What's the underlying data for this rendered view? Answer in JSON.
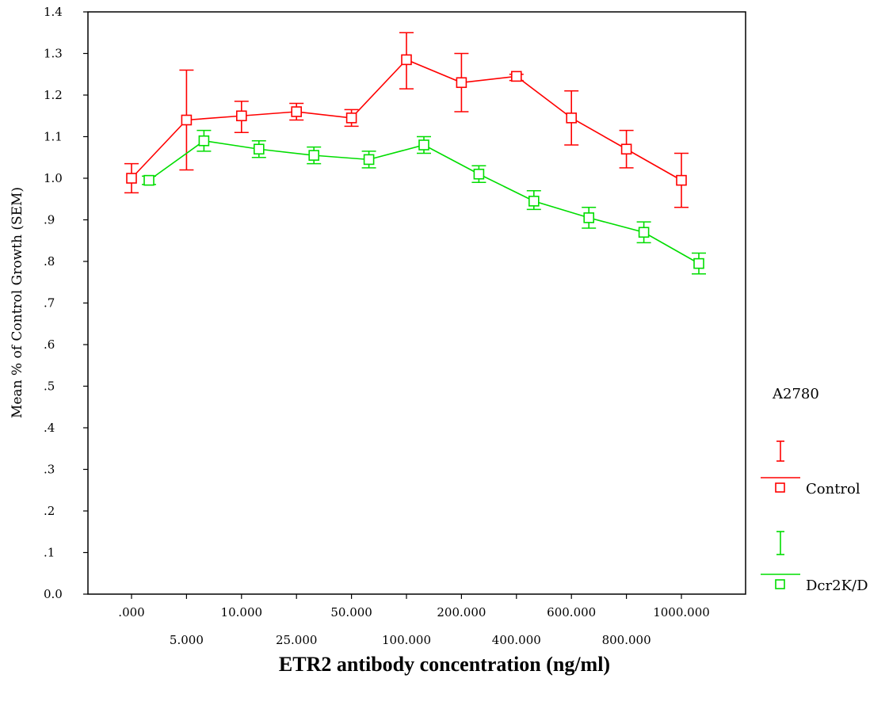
{
  "chart_data": {
    "type": "line",
    "title": "",
    "xlabel": "ETR2 antibody concentration (ng/ml)",
    "ylabel": "Mean % of Control Growth (SEM)",
    "ylim": [
      0,
      1.4
    ],
    "y_ticks": [
      "0.0",
      ".1",
      ".2",
      ".3",
      ".4",
      ".5",
      ".6",
      ".7",
      ".8",
      ".9",
      "1.0",
      "1.1",
      "1.2",
      "1.3",
      "1.4"
    ],
    "categories": [
      ".000",
      "5.000",
      "10.000",
      "25.000",
      "50.000",
      "100.000",
      "200.000",
      "400.000",
      "600.000",
      "800.000",
      "1000.000"
    ],
    "grid": false,
    "legend": {
      "title": "A2780",
      "position": "right"
    },
    "series": [
      {
        "name": "Control",
        "color": "#ff0000",
        "error_bars": "SEM",
        "values": [
          1.0,
          1.14,
          1.15,
          1.16,
          1.145,
          1.285,
          1.23,
          1.245,
          1.145,
          1.07,
          0.995
        ],
        "err_low": [
          0.965,
          1.02,
          1.11,
          1.14,
          1.125,
          1.215,
          1.16,
          1.235,
          1.08,
          1.025,
          0.93
        ],
        "err_high": [
          1.035,
          1.26,
          1.185,
          1.18,
          1.165,
          1.35,
          1.3,
          1.25,
          1.21,
          1.115,
          1.06
        ]
      },
      {
        "name": "Dcr2K/D",
        "color": "#00dd00",
        "error_bars": "SEM",
        "values": [
          0.995,
          1.09,
          1.07,
          1.055,
          1.045,
          1.08,
          1.01,
          0.945,
          0.905,
          0.87,
          0.795
        ],
        "err_low": [
          0.985,
          1.065,
          1.05,
          1.035,
          1.025,
          1.06,
          0.99,
          0.925,
          0.88,
          0.845,
          0.77
        ],
        "err_high": [
          1.005,
          1.115,
          1.09,
          1.075,
          1.065,
          1.1,
          1.03,
          0.97,
          0.93,
          0.895,
          0.82
        ]
      }
    ]
  }
}
